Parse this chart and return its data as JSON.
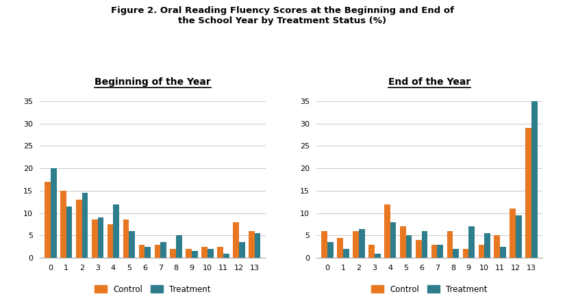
{
  "title_line1": "Figure 2. Oral Reading Fluency Scores at the Beginning and End of",
  "title_line2": "the School Year by Treatment Status (%)",
  "subtitle_left": "Beginning of the Year",
  "subtitle_right": "End of the Year",
  "categories": [
    0,
    1,
    2,
    3,
    4,
    5,
    6,
    7,
    8,
    9,
    10,
    11,
    12,
    13
  ],
  "beginning_control": [
    17,
    15,
    13,
    8.5,
    7.5,
    8.5,
    3,
    3,
    2,
    2,
    2.5,
    2.5,
    8,
    6
  ],
  "beginning_treatment": [
    20,
    11.5,
    14.5,
    9,
    12,
    6,
    2.5,
    3.5,
    5,
    1.5,
    2,
    1,
    3.5,
    5.5
  ],
  "end_control": [
    6,
    4.5,
    6,
    3,
    12,
    7,
    4,
    3,
    6,
    2,
    3,
    5,
    11,
    29
  ],
  "end_treatment": [
    3.5,
    2,
    6.5,
    1,
    8,
    5,
    6,
    3,
    2,
    7,
    5.5,
    2.5,
    9.5,
    35
  ],
  "color_control": "#E87722",
  "color_treatment": "#2E7D8C",
  "ylim": [
    0,
    37
  ],
  "yticks": [
    0,
    5,
    10,
    15,
    20,
    25,
    30,
    35
  ],
  "legend_control": "Control",
  "legend_treatment": "Treatment",
  "bar_width": 0.38,
  "background_color": "#ffffff",
  "grid_color": "#cccccc"
}
